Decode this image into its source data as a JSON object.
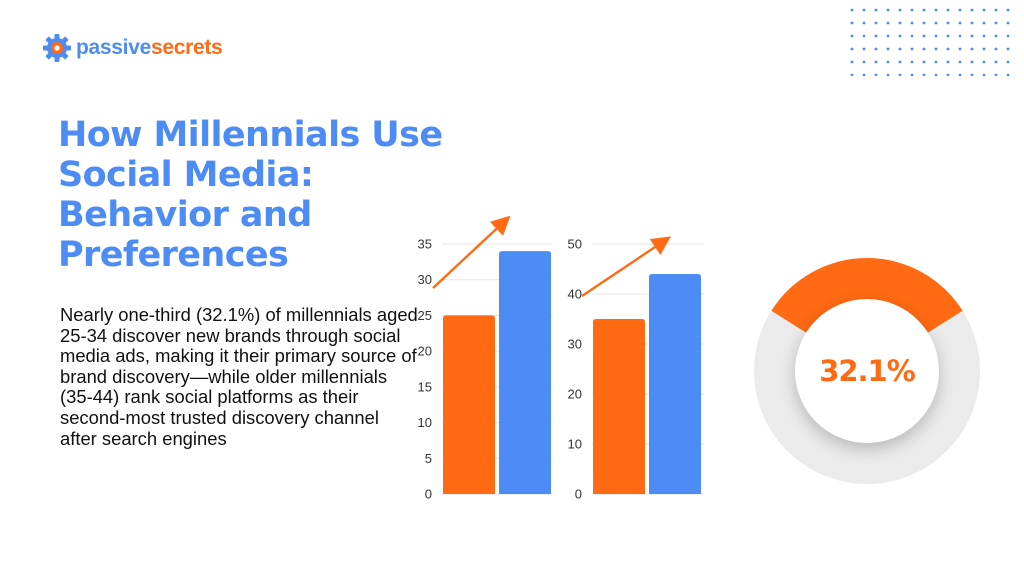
{
  "brand": {
    "name_part1": "passive",
    "name_part2": "secrets",
    "icon": "gear-icon",
    "colors": {
      "blue": "#4d8bf5",
      "orange": "#ff6a13"
    }
  },
  "headline": "How Millennials Use Social Media: Behavior and Preferences",
  "body": "Nearly one-third (32.1%) of millennials aged 25-34 discover new brands through social media ads, making it their primary source of brand discovery—while older millennials (35-44) rank social platforms as their second-most trusted discovery channel after search engines",
  "chart_data": [
    {
      "type": "bar",
      "categories": [
        "",
        ""
      ],
      "values": [
        25,
        34
      ],
      "bar_colors": [
        "#ff6a13",
        "#4d8bf5"
      ],
      "yticks": [
        0,
        5,
        10,
        15,
        20,
        25,
        30,
        35
      ],
      "ylim": [
        0,
        35
      ],
      "trend_arrow": true,
      "grid": true
    },
    {
      "type": "bar",
      "categories": [
        "",
        ""
      ],
      "values": [
        35,
        44
      ],
      "bar_colors": [
        "#ff6a13",
        "#4d8bf5"
      ],
      "yticks": [
        0,
        10,
        20,
        30,
        40,
        50
      ],
      "ylim": [
        0,
        50
      ],
      "trend_arrow": true,
      "grid": true
    },
    {
      "type": "pie",
      "style": "donut",
      "values": [
        32.1,
        67.9
      ],
      "colors": [
        "#ff6a13",
        "#ebebeb"
      ],
      "center_label": "32.1%"
    }
  ]
}
